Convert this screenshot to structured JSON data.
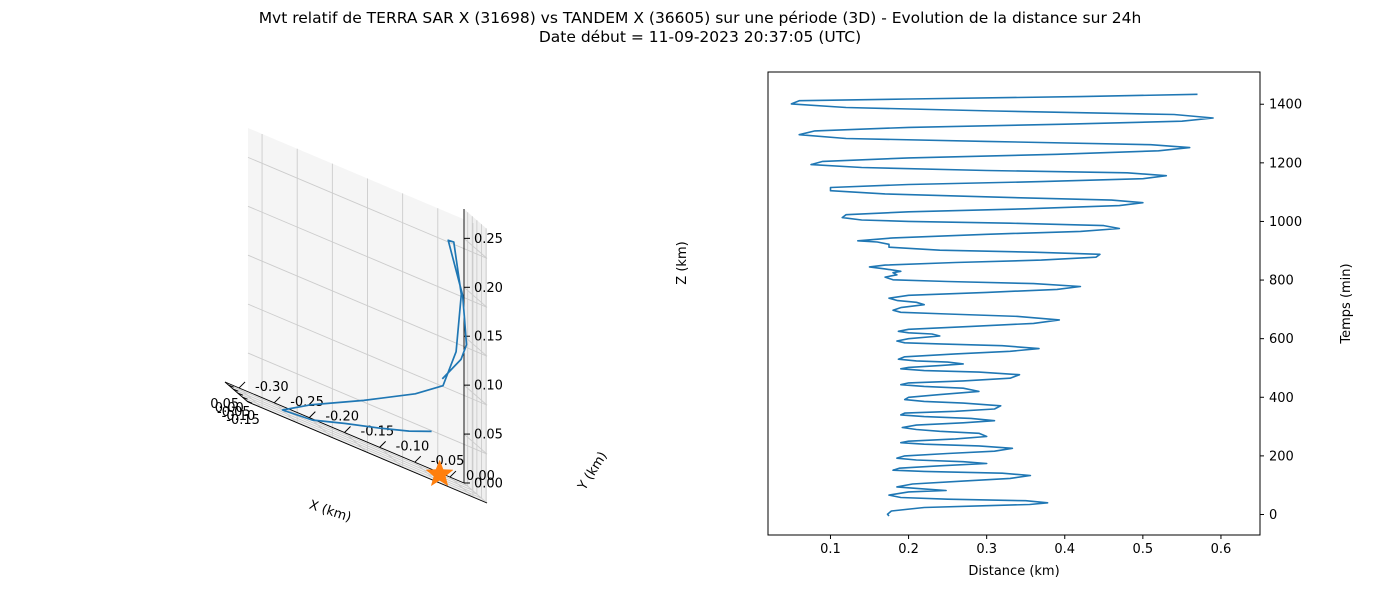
{
  "figure": {
    "title_line1": "Mvt relatif de TERRA SAR X (31698) vs TANDEM X (36605) sur une période (3D) - Evolution de la distance sur 24h",
    "title_line2": "Date début = 11-09-2023 20:37:05 (UTC)"
  },
  "colors": {
    "series": "#1f77b4",
    "marker": "#ff7f0e",
    "grid": "#cccccc",
    "pane": "#f2f2f2"
  },
  "chart_data": [
    {
      "type": "line",
      "projection": "3d",
      "xlabel": "X (km)",
      "ylabel": "Y (km)",
      "zlabel": "Z (km)",
      "xlim": [
        -0.16,
        0.09
      ],
      "ylim": [
        -0.32,
        0.02
      ],
      "zlim": [
        0.0,
        0.28
      ],
      "xticks": [
        "-0.15",
        "-0.10",
        "-0.05",
        "0.00",
        "0.05"
      ],
      "yticks": [
        "-0.30",
        "-0.25",
        "-0.20",
        "-0.15",
        "-0.10",
        "-0.05",
        "0.00"
      ],
      "zticks": [
        "0.00",
        "0.05",
        "0.10",
        "0.15",
        "0.20",
        "0.25"
      ],
      "grid": true,
      "series": [
        {
          "x": [
            0.06,
            0.075,
            0.085,
            0.08,
            0.06,
            0.0,
            -0.07,
            -0.12,
            -0.145,
            -0.14,
            -0.13,
            -0.11,
            -0.105,
            -0.12,
            -0.125,
            -0.09,
            -0.03,
            0.02
          ],
          "y": [
            -0.03,
            -0.06,
            -0.1,
            -0.15,
            -0.2,
            -0.25,
            -0.22,
            -0.15,
            -0.08,
            -0.04,
            -0.02,
            -0.01,
            -0.02,
            -0.03,
            -0.01,
            0.0,
            0.0,
            -0.02
          ],
          "z": [
            0.04,
            0.03,
            0.02,
            0.01,
            0.0,
            0.0,
            0.02,
            0.05,
            0.08,
            0.1,
            0.14,
            0.2,
            0.25,
            0.25,
            0.2,
            0.15,
            0.13,
            0.1
          ]
        }
      ],
      "marker": {
        "shape": "star",
        "x": 0.05,
        "y": -0.02,
        "z": 0.0
      }
    },
    {
      "type": "line",
      "xlabel": "Distance (km)",
      "ylabel": "Temps (min)",
      "xlim": [
        0.02,
        0.65
      ],
      "ylim": [
        -70,
        1510
      ],
      "xticks": [
        0.1,
        0.2,
        0.3,
        0.4,
        0.5,
        0.6
      ],
      "yticks": [
        0,
        200,
        400,
        600,
        800,
        1000,
        1200,
        1400
      ],
      "grid": false,
      "yaxis_side": "right",
      "series": [
        {
          "distance": [
            0.175,
            0.173,
            0.178,
            0.22,
            0.3,
            0.355,
            0.378,
            0.35,
            0.25,
            0.19,
            0.175,
            0.2,
            0.248,
            0.215,
            0.185,
            0.205,
            0.27,
            0.33,
            0.356,
            0.32,
            0.22,
            0.18,
            0.188,
            0.24,
            0.3,
            0.27,
            0.21,
            0.185,
            0.195,
            0.25,
            0.31,
            0.333,
            0.29,
            0.22,
            0.19,
            0.2,
            0.26,
            0.3,
            0.29,
            0.24,
            0.21,
            0.192,
            0.21,
            0.27,
            0.31,
            0.28,
            0.22,
            0.19,
            0.195,
            0.26,
            0.31,
            0.318,
            0.27,
            0.22,
            0.195,
            0.2,
            0.24,
            0.29,
            0.27,
            0.22,
            0.19,
            0.2,
            0.27,
            0.33,
            0.342,
            0.29,
            0.22,
            0.19,
            0.2,
            0.24,
            0.27,
            0.25,
            0.21,
            0.187,
            0.195,
            0.26,
            0.33,
            0.367,
            0.32,
            0.24,
            0.195,
            0.185,
            0.2,
            0.24,
            0.23,
            0.2,
            0.187,
            0.2,
            0.28,
            0.36,
            0.393,
            0.34,
            0.25,
            0.19,
            0.18,
            0.19,
            0.22,
            0.21,
            0.186,
            0.175,
            0.2,
            0.3,
            0.39,
            0.42,
            0.36,
            0.25,
            0.18,
            0.17,
            0.185,
            0.18,
            0.19,
            0.17,
            0.15,
            0.17,
            0.26,
            0.37,
            0.44,
            0.445,
            0.36,
            0.24,
            0.175,
            0.175,
            0.16,
            0.135,
            0.18,
            0.3,
            0.42,
            0.47,
            0.45,
            0.33,
            0.2,
            0.14,
            0.115,
            0.12,
            0.2,
            0.35,
            0.47,
            0.5,
            0.46,
            0.31,
            0.17,
            0.1,
            0.1,
            0.2,
            0.37,
            0.5,
            0.53,
            0.48,
            0.3,
            0.14,
            0.075,
            0.09,
            0.2,
            0.39,
            0.52,
            0.56,
            0.51,
            0.3,
            0.12,
            0.06,
            0.08,
            0.2,
            0.4,
            0.55,
            0.59,
            0.54,
            0.31,
            0.12,
            0.05,
            0.06,
            0.2,
            0.42,
            0.57,
            0.62,
            0.58,
            0.4,
            0.32
          ],
          "time": [
            -5,
            1,
            12,
            24,
            30,
            34,
            40,
            47,
            52,
            58,
            66,
            77,
            82,
            88,
            94,
            104,
            114,
            123,
            133,
            141,
            147,
            151,
            158,
            166,
            174,
            180,
            186,
            192,
            200,
            208,
            216,
            226,
            234,
            240,
            245,
            250,
            258,
            266,
            277,
            284,
            290,
            297,
            305,
            313,
            320,
            328,
            334,
            340,
            346,
            352,
            360,
            371,
            380,
            386,
            392,
            400,
            409,
            420,
            431,
            437,
            443,
            449,
            456,
            465,
            477,
            486,
            491,
            497,
            502,
            508,
            514,
            520,
            524,
            530,
            538,
            548,
            557,
            566,
            576,
            582,
            586,
            592,
            600,
            609,
            616,
            620,
            625,
            632,
            642,
            652,
            664,
            676,
            684,
            690,
            697,
            706,
            716,
            724,
            730,
            738,
            748,
            758,
            768,
            778,
            788,
            795,
            801,
            810,
            818,
            825,
            830,
            838,
            845,
            851,
            860,
            868,
            878,
            888,
            895,
            902,
            912,
            922,
            930,
            934,
            944,
            956,
            966,
            976,
            986,
            994,
            1000,
            1005,
            1013,
            1023,
            1033,
            1043,
            1054,
            1064,
            1073,
            1083,
            1094,
            1105,
            1116,
            1126,
            1136,
            1146,
            1156,
            1166,
            1174,
            1184,
            1194,
            1205,
            1217,
            1229,
            1241,
            1252,
            1262,
            1273,
            1283,
            1296,
            1309,
            1321,
            1332,
            1342,
            1353,
            1365,
            1377,
            1389,
            1401,
            1412,
            1418,
            1426,
            1434
          ]
        }
      ]
    }
  ]
}
